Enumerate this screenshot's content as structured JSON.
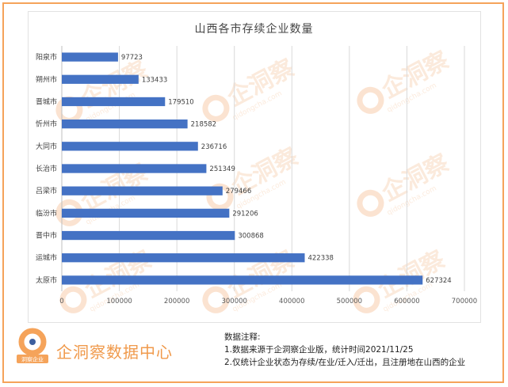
{
  "chart_data": {
    "type": "bar",
    "orientation": "horizontal",
    "title": "山西各市存续企业数量",
    "categories": [
      "阳泉市",
      "朔州市",
      "晋城市",
      "忻州市",
      "大同市",
      "长治市",
      "吕梁市",
      "临汾市",
      "晋中市",
      "运城市",
      "太原市"
    ],
    "values": [
      97723,
      133433,
      179510,
      218582,
      236716,
      251349,
      279466,
      291206,
      300868,
      422338,
      627324
    ],
    "xlim": [
      0,
      700000
    ],
    "xticks": [
      "0",
      "100000",
      "200000",
      "300000",
      "400000",
      "500000",
      "600000",
      "700000"
    ],
    "grid": true,
    "bar_color": "#4472c4"
  },
  "watermark": "企洞察",
  "watermark_url": "qidongcha.com",
  "logo": {
    "text": "企洞察数据中心",
    "badge": "洞察企业"
  },
  "notes": {
    "heading": "数据注释:",
    "line1": "1.数据来源于企洞察企业版，统计时间2021/11/25",
    "line2": "2.仅统计企业状态为存续/在业/迁入/迁出，且注册地在山西的企业"
  }
}
